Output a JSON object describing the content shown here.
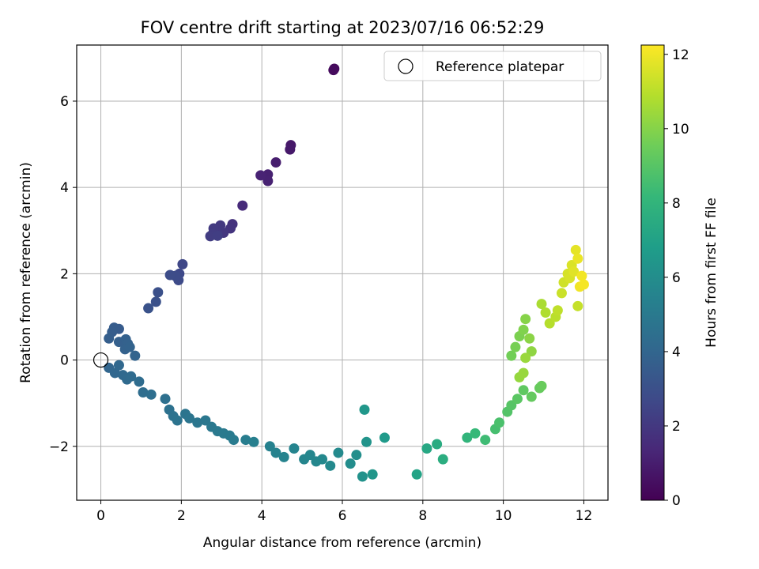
{
  "chart_data": {
    "type": "scatter",
    "title": "FOV centre drift starting at 2023/07/16 06:52:29",
    "xlabel": "Angular distance from reference (arcmin)",
    "ylabel": "Rotation from reference (arcmin)",
    "xlim": [
      -0.6,
      12.6
    ],
    "ylim": [
      -3.25,
      7.3
    ],
    "xticks": [
      0,
      2,
      4,
      6,
      8,
      10,
      12
    ],
    "yticks": [
      -2,
      0,
      2,
      4,
      6
    ],
    "xtick_labels": [
      "0",
      "2",
      "4",
      "6",
      "8",
      "10",
      "12"
    ],
    "ytick_labels": [
      "−2",
      "0",
      "2",
      "4",
      "6"
    ],
    "grid": true,
    "legend": {
      "location": "upper right",
      "entries": [
        "Reference platepar"
      ]
    },
    "reference_point": {
      "x": 0,
      "y": 0,
      "label": "Reference platepar"
    },
    "colorbar": {
      "label": "Hours from first FF file",
      "range": [
        0,
        12.25
      ],
      "ticks": [
        0,
        2,
        4,
        6,
        8,
        10,
        12
      ],
      "tick_labels": [
        "0",
        "2",
        "4",
        "6",
        "8",
        "10",
        "12"
      ],
      "colormap": "viridis"
    },
    "series": [
      {
        "x": [
          5.8,
          5.78,
          4.72,
          4.7,
          4.35,
          4.15,
          4.15,
          3.97,
          3.52,
          3.27,
          3.22,
          3.05,
          2.97,
          2.9,
          2.8,
          2.78,
          2.72,
          2.9,
          2.03,
          1.95,
          1.93,
          1.85,
          1.72,
          1.42,
          1.37,
          1.18,
          0.45,
          0.33,
          0.28,
          0.2,
          0.45,
          0.62,
          0.67,
          0.72,
          0.85,
          0.6,
          0.2,
          0.35,
          0.45,
          0.55,
          0.65,
          0.75,
          0.95,
          1.05,
          1.25,
          1.6,
          1.7,
          1.8,
          1.9,
          2.1,
          2.2,
          2.4,
          2.6,
          2.75,
          2.9,
          3.05,
          3.2,
          3.3,
          3.6,
          3.8,
          4.2,
          4.35,
          4.55,
          4.8,
          5.05,
          5.2,
          5.35,
          5.5,
          5.7,
          5.9,
          6.2,
          6.35,
          6.5,
          6.6,
          6.75,
          6.55,
          7.05,
          7.85,
          8.1,
          8.35,
          8.5,
          9.1,
          9.3,
          9.55,
          9.8,
          9.9,
          10.1,
          10.2,
          10.35,
          10.5,
          10.7,
          10.9,
          10.95,
          10.2,
          10.3,
          10.4,
          10.5,
          10.55,
          10.65,
          10.7,
          10.4,
          10.5,
          10.55,
          10.95,
          11.05,
          11.15,
          11.3,
          11.35,
          11.45,
          11.5,
          11.6,
          11.65,
          11.7,
          11.75,
          11.8,
          11.85,
          11.9,
          11.95,
          12.0,
          11.85
        ],
        "y": [
          6.75,
          6.72,
          4.98,
          4.88,
          4.58,
          4.3,
          4.15,
          4.28,
          3.58,
          3.15,
          3.05,
          2.95,
          3.12,
          2.95,
          3.05,
          2.92,
          2.87,
          2.88,
          2.22,
          2.0,
          1.85,
          1.95,
          1.97,
          1.57,
          1.35,
          1.2,
          0.72,
          0.75,
          0.65,
          0.5,
          0.42,
          0.48,
          0.38,
          0.3,
          0.1,
          0.25,
          -0.18,
          -0.3,
          -0.12,
          -0.35,
          -0.45,
          -0.38,
          -0.5,
          -0.75,
          -0.8,
          -0.9,
          -1.15,
          -1.3,
          -1.4,
          -1.25,
          -1.35,
          -1.45,
          -1.4,
          -1.55,
          -1.65,
          -1.7,
          -1.75,
          -1.85,
          -1.85,
          -1.9,
          -2.0,
          -2.15,
          -2.25,
          -2.05,
          -2.3,
          -2.2,
          -2.35,
          -2.3,
          -2.45,
          -2.15,
          -2.4,
          -2.2,
          -2.7,
          -1.9,
          -2.65,
          -1.15,
          -1.8,
          -2.65,
          -2.05,
          -1.95,
          -2.3,
          -1.8,
          -1.7,
          -1.85,
          -1.6,
          -1.45,
          -1.2,
          -1.05,
          -0.9,
          -0.7,
          -0.85,
          -0.65,
          -0.6,
          0.1,
          0.3,
          0.55,
          0.7,
          0.95,
          0.5,
          0.2,
          -0.4,
          -0.3,
          0.05,
          1.3,
          1.1,
          0.85,
          1.0,
          1.15,
          1.55,
          1.8,
          2.0,
          1.9,
          2.2,
          2.05,
          2.55,
          2.35,
          1.7,
          1.95,
          1.75,
          1.25
        ],
        "c": [
          0.3,
          0.35,
          0.8,
          0.85,
          1.0,
          1.1,
          1.15,
          1.2,
          1.5,
          1.8,
          1.85,
          1.95,
          2.0,
          2.05,
          2.1,
          2.15,
          2.2,
          2.25,
          2.6,
          2.7,
          2.75,
          2.8,
          2.85,
          3.0,
          3.05,
          3.1,
          3.5,
          3.55,
          3.6,
          3.65,
          3.7,
          3.75,
          3.8,
          3.85,
          3.9,
          3.8,
          4.0,
          4.05,
          4.1,
          4.15,
          4.2,
          4.25,
          4.3,
          4.35,
          4.4,
          4.5,
          4.55,
          4.6,
          4.65,
          4.7,
          4.75,
          4.8,
          4.85,
          4.9,
          4.95,
          5.0,
          5.05,
          5.1,
          5.2,
          5.3,
          5.4,
          5.45,
          5.5,
          5.55,
          5.6,
          5.65,
          5.7,
          5.75,
          5.8,
          5.85,
          6.0,
          6.1,
          6.2,
          6.3,
          6.4,
          6.45,
          6.6,
          7.1,
          7.3,
          7.5,
          7.6,
          8.0,
          8.2,
          8.4,
          8.6,
          8.7,
          8.9,
          9.0,
          9.1,
          9.2,
          9.3,
          9.35,
          9.4,
          9.6,
          9.7,
          9.8,
          9.9,
          10.0,
          10.1,
          10.2,
          10.3,
          10.35,
          10.4,
          10.7,
          10.8,
          10.9,
          11.0,
          11.1,
          11.3,
          11.4,
          11.5,
          11.55,
          11.6,
          11.7,
          11.8,
          11.9,
          12.0,
          12.05,
          12.1,
          11.2
        ]
      }
    ]
  }
}
